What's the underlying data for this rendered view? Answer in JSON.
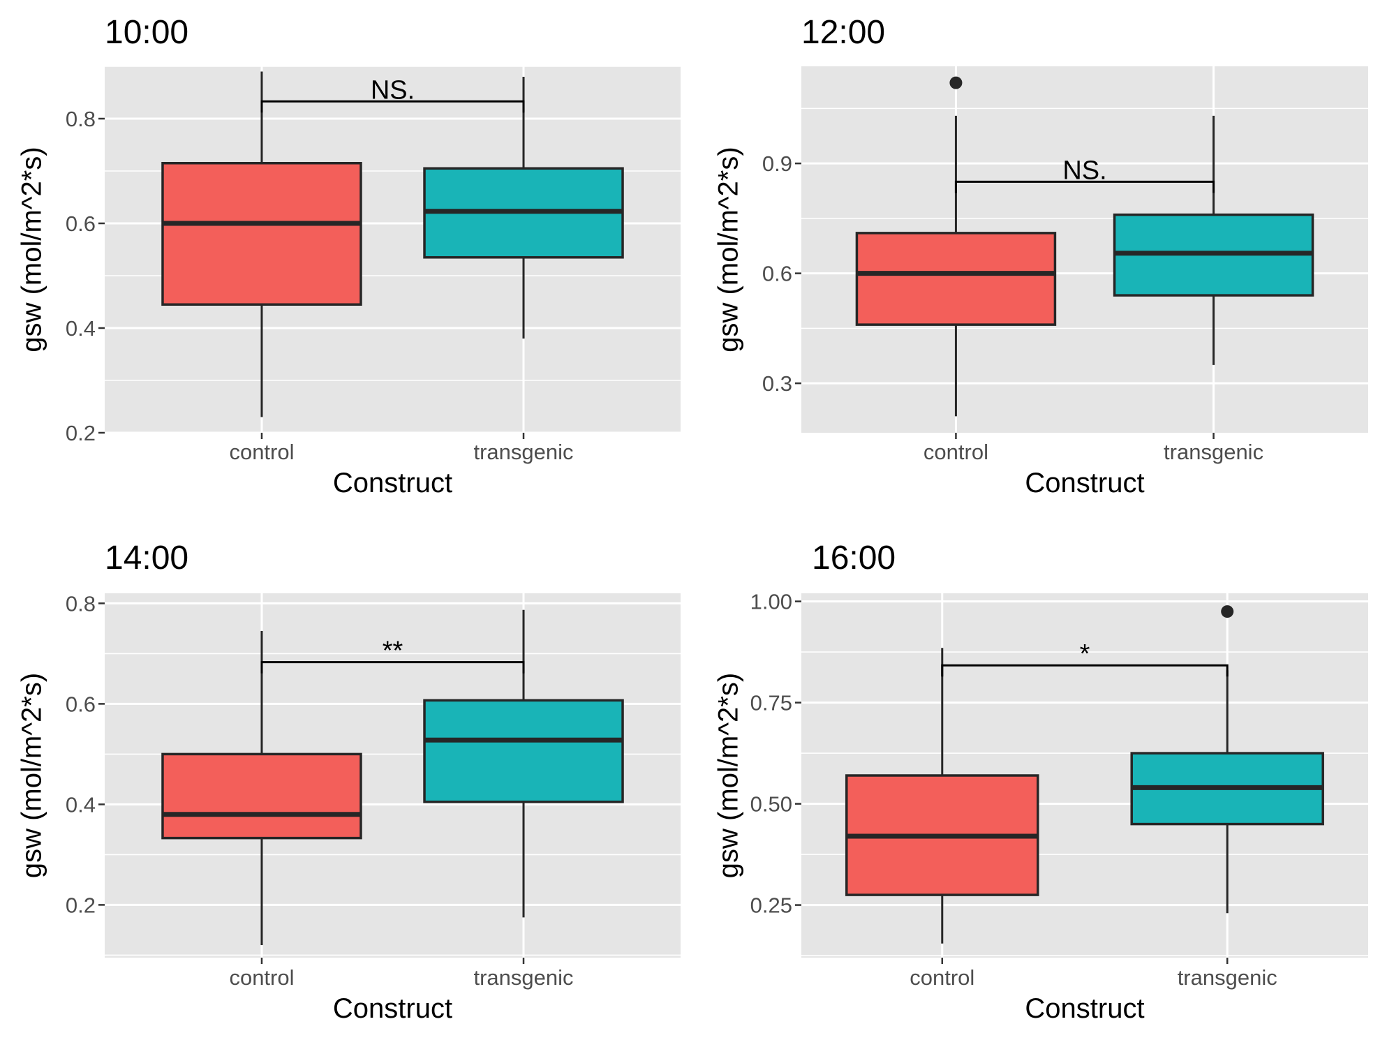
{
  "colors": {
    "control": "#F35F5A",
    "transgenic": "#19B4B7",
    "panel_bg": "#E5E5E5",
    "grid": "#FFFFFF",
    "outline": "#262626"
  },
  "chart_data": [
    {
      "type": "box",
      "title": "10:00",
      "xlabel": "Construct",
      "ylabel": "gsw (mol/m^2*s)",
      "ylim": [
        0.2,
        0.9
      ],
      "yticks": [
        0.2,
        0.4,
        0.6,
        0.8
      ],
      "ytick_labels": [
        "0.2",
        "0.4",
        "0.6",
        "0.8"
      ],
      "grid": true,
      "categories": [
        "control",
        "transgenic"
      ],
      "boxes": [
        {
          "category": "control",
          "whisker_low": 0.23,
          "q1": 0.445,
          "median": 0.6,
          "q3": 0.715,
          "whisker_high": 0.89,
          "outliers": []
        },
        {
          "category": "transgenic",
          "whisker_low": 0.38,
          "q1": 0.535,
          "median": 0.623,
          "q3": 0.705,
          "whisker_high": 0.88,
          "outliers": []
        }
      ],
      "significance": {
        "label": "NS.",
        "y": 0.833
      }
    },
    {
      "type": "box",
      "title": "12:00",
      "xlabel": "Construct",
      "ylabel": "gsw (mol/m^2*s)",
      "ylim": [
        0.165,
        1.165
      ],
      "yticks": [
        0.3,
        0.6,
        0.9
      ],
      "ytick_labels": [
        "0.3",
        "0.6",
        "0.9"
      ],
      "grid": true,
      "categories": [
        "control",
        "transgenic"
      ],
      "boxes": [
        {
          "category": "control",
          "whisker_low": 0.21,
          "q1": 0.46,
          "median": 0.6,
          "q3": 0.71,
          "whisker_high": 1.03,
          "outliers": [
            1.12
          ]
        },
        {
          "category": "transgenic",
          "whisker_low": 0.35,
          "q1": 0.54,
          "median": 0.655,
          "q3": 0.76,
          "whisker_high": 1.03,
          "outliers": []
        }
      ],
      "significance": {
        "label": "NS.",
        "y": 0.85
      }
    },
    {
      "type": "box",
      "title": "14:00",
      "xlabel": "Construct",
      "ylabel": "gsw (mol/m^2*s)",
      "ylim": [
        0.095,
        0.82
      ],
      "yticks": [
        0.2,
        0.4,
        0.6,
        0.8
      ],
      "ytick_labels": [
        "0.2",
        "0.4",
        "0.6",
        "0.8"
      ],
      "grid": true,
      "categories": [
        "control",
        "transgenic"
      ],
      "boxes": [
        {
          "category": "control",
          "whisker_low": 0.12,
          "q1": 0.333,
          "median": 0.38,
          "q3": 0.5,
          "whisker_high": 0.745,
          "outliers": []
        },
        {
          "category": "transgenic",
          "whisker_low": 0.175,
          "q1": 0.405,
          "median": 0.528,
          "q3": 0.607,
          "whisker_high": 0.787,
          "outliers": []
        }
      ],
      "significance": {
        "label": "**",
        "y": 0.683
      }
    },
    {
      "type": "box",
      "title": "16:00",
      "xlabel": "Construct",
      "ylabel": "gsw (mol/m^2*s)",
      "ylim": [
        0.12,
        1.02
      ],
      "yticks": [
        0.25,
        0.5,
        0.75,
        1.0
      ],
      "ytick_labels": [
        "0.25",
        "0.50",
        "0.75",
        "1.00"
      ],
      "grid": true,
      "categories": [
        "control",
        "transgenic"
      ],
      "boxes": [
        {
          "category": "control",
          "whisker_low": 0.155,
          "q1": 0.275,
          "median": 0.42,
          "q3": 0.57,
          "whisker_high": 0.885,
          "outliers": []
        },
        {
          "category": "transgenic",
          "whisker_low": 0.23,
          "q1": 0.45,
          "median": 0.54,
          "q3": 0.625,
          "whisker_high": 0.83,
          "outliers": [
            0.975
          ]
        }
      ],
      "significance": {
        "label": "*",
        "y": 0.842
      }
    }
  ]
}
